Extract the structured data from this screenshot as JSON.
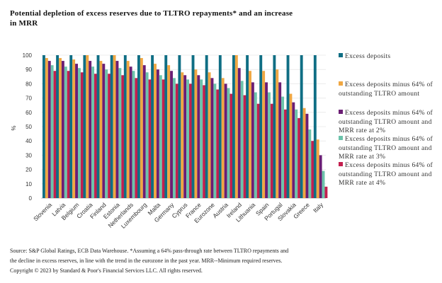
{
  "chart_data": {
    "type": "bar",
    "title": "Potential depletion of excess reserves due to TLTRO repayments* and an increase in MRR",
    "xlabel": "",
    "ylabel": "%",
    "ylim": [
      0,
      100
    ],
    "yticks": [
      0,
      10,
      20,
      30,
      40,
      50,
      60,
      70,
      80,
      90,
      100
    ],
    "grid": true,
    "legend_position": "right",
    "categories": [
      "Slovenia",
      "Latvia",
      "Belgium",
      "Croatia",
      "Finland",
      "Estonia",
      "Netherlands",
      "Luxembourg",
      "Malta",
      "Germany",
      "Cyprus",
      "France",
      "Eurozone",
      "Austria",
      "Ireland",
      "Lithuania",
      "Spain",
      "Portugal",
      "Slovakia",
      "Greece",
      "Italy"
    ],
    "series": [
      {
        "name": "Excess deposits",
        "color": "#0f6e84",
        "values": [
          100,
          100,
          100,
          100,
          100,
          100,
          100,
          100,
          100,
          100,
          100,
          100,
          100,
          100,
          100,
          100,
          100,
          100,
          100,
          100,
          100
        ]
      },
      {
        "name": "Excess deposits minus 64% of outstanding TLTRO amount",
        "color": "#f0a742",
        "values": [
          98,
          98,
          97,
          100,
          96,
          100,
          96,
          98,
          94,
          93,
          88,
          90,
          88,
          84,
          100,
          89,
          89,
          90,
          73,
          63,
          41
        ]
      },
      {
        "name": "Excess deposits minus 64% of outstanding TLTRO amount and MRR rate at 2%",
        "color": "#6b1e74",
        "values": [
          96,
          96,
          94,
          96,
          94,
          96,
          92,
          93,
          90,
          89,
          86,
          86,
          84,
          80,
          91,
          81,
          81,
          81,
          67,
          59,
          30
        ]
      },
      {
        "name": "Excess deposits minus 64% of outstanding TLTRO amount and MRR rate at 3%",
        "color": "#6cc3ab",
        "values": [
          93,
          92,
          91,
          92,
          90,
          91,
          89,
          88,
          86,
          84,
          83,
          83,
          80,
          77,
          82,
          74,
          74,
          71,
          62,
          48,
          19
        ]
      },
      {
        "name": "Excess deposits minus 64% of outstanding TLTRO amount and MRR rate at 4%",
        "color": "#c31f4e",
        "values": [
          89,
          89,
          88,
          87,
          87,
          86,
          84,
          83,
          83,
          80,
          80,
          79,
          76,
          73,
          72,
          66,
          66,
          62,
          56,
          40,
          8
        ]
      }
    ]
  },
  "title": "Potential depletion of excess reserves due to TLTRO repayments* and an increase in MRR",
  "legend": [
    {
      "label": "Excess deposits",
      "color": "#0f6e84"
    },
    {
      "label": "Excess deposits minus 64% of outstanding TLTRO amount",
      "color": "#f0a742"
    },
    {
      "label": "Excess deposits minus 64% of outstanding TLTRO amount and MRR rate at 2%",
      "color": "#6b1e74"
    },
    {
      "label": "Excess deposits minus 64% of outstanding TLTRO amount and MRR rate at 3%",
      "color": "#6cc3ab"
    },
    {
      "label": "Excess deposits minus 64% of outstanding TLTRO amount and MRR rate at 4%",
      "color": "#c31f4e"
    }
  ],
  "footer": {
    "line1": "Source: S&P Global Ratings, ECB Data Warehouse. *Assuming a 64% pass-through rate between TLTRO repayments and",
    "line2": "the decline in excess reserves, in line with the trend in the eurozone in the past year. MRR--Minimum required reserves.",
    "line3": "Copyright © 2023 by Standard & Poor's Financial Services LLC. All rights reserved."
  }
}
